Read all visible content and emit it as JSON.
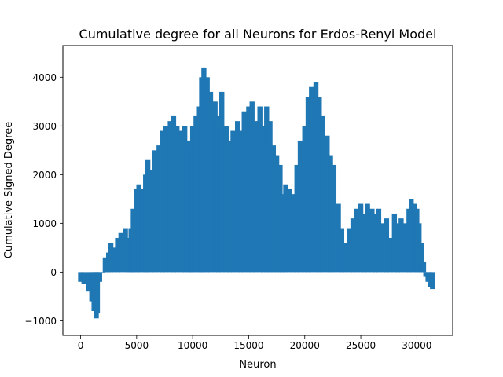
{
  "chart_data": {
    "type": "bar",
    "title": "Cumulative degree for all Neurons for Erdos-Renyi Model",
    "xlabel": "Neuron",
    "ylabel": "Cumulative Signed Degree",
    "xlim": [
      -1580,
      33200
    ],
    "ylim": [
      -1300,
      4650
    ],
    "xticks": [
      0,
      5000,
      10000,
      15000,
      20000,
      25000,
      30000
    ],
    "yticks": [
      -1000,
      0,
      1000,
      2000,
      3000,
      4000
    ],
    "bar_color": "#1f77b4",
    "grid": false,
    "legend": "none",
    "x": [
      0,
      300,
      700,
      1000,
      1200,
      1400,
      1500,
      1700,
      2000,
      2200,
      2500,
      2700,
      3000,
      3300,
      3600,
      4000,
      4300,
      4500,
      4700,
      5000,
      5200,
      5500,
      5800,
      6000,
      6300,
      6600,
      7000,
      7300,
      7600,
      8000,
      8300,
      8600,
      9000,
      9300,
      9600,
      9800,
      10000,
      10300,
      10600,
      10800,
      11000,
      11300,
      11600,
      12000,
      12300,
      12600,
      13000,
      13300,
      13600,
      14000,
      14300,
      14600,
      15000,
      15300,
      15600,
      16000,
      16300,
      16600,
      16900,
      17200,
      17500,
      17800,
      18000,
      18300,
      18600,
      19000,
      19300,
      19600,
      20000,
      20300,
      20600,
      21000,
      21300,
      21600,
      22000,
      22300,
      22600,
      23000,
      23300,
      23600,
      24000,
      24300,
      24600,
      25000,
      25300,
      25600,
      26000,
      26300,
      26600,
      27000,
      27300,
      27600,
      28000,
      28300,
      28600,
      29000,
      29300,
      29500,
      29800,
      30000,
      30200,
      30400,
      30600,
      30800,
      31000,
      31200,
      31400
    ],
    "values": [
      -200,
      -250,
      -400,
      -600,
      -800,
      -950,
      -850,
      -200,
      0,
      300,
      400,
      600,
      500,
      700,
      800,
      900,
      700,
      900,
      1300,
      1700,
      1800,
      1700,
      2000,
      2300,
      2100,
      2500,
      2600,
      2900,
      3000,
      3100,
      3200,
      3000,
      2900,
      3000,
      2700,
      2600,
      3000,
      3200,
      3400,
      4000,
      4200,
      4000,
      3700,
      3500,
      3200,
      3700,
      3000,
      2700,
      2900,
      3100,
      2900,
      3300,
      3400,
      3500,
      3100,
      3400,
      3000,
      3400,
      3100,
      2600,
      2400,
      2200,
      1600,
      1800,
      1700,
      1600,
      2200,
      2700,
      3000,
      3600,
      3800,
      3900,
      3600,
      3200,
      2800,
      2400,
      2200,
      1400,
      900,
      600,
      900,
      1100,
      1300,
      1400,
      1200,
      1400,
      1300,
      1200,
      1300,
      1000,
      1100,
      700,
      1200,
      1000,
      1100,
      1000,
      1300,
      1500,
      1400,
      1300,
      1000,
      600,
      200,
      -100,
      -200,
      -300,
      -350
    ]
  }
}
